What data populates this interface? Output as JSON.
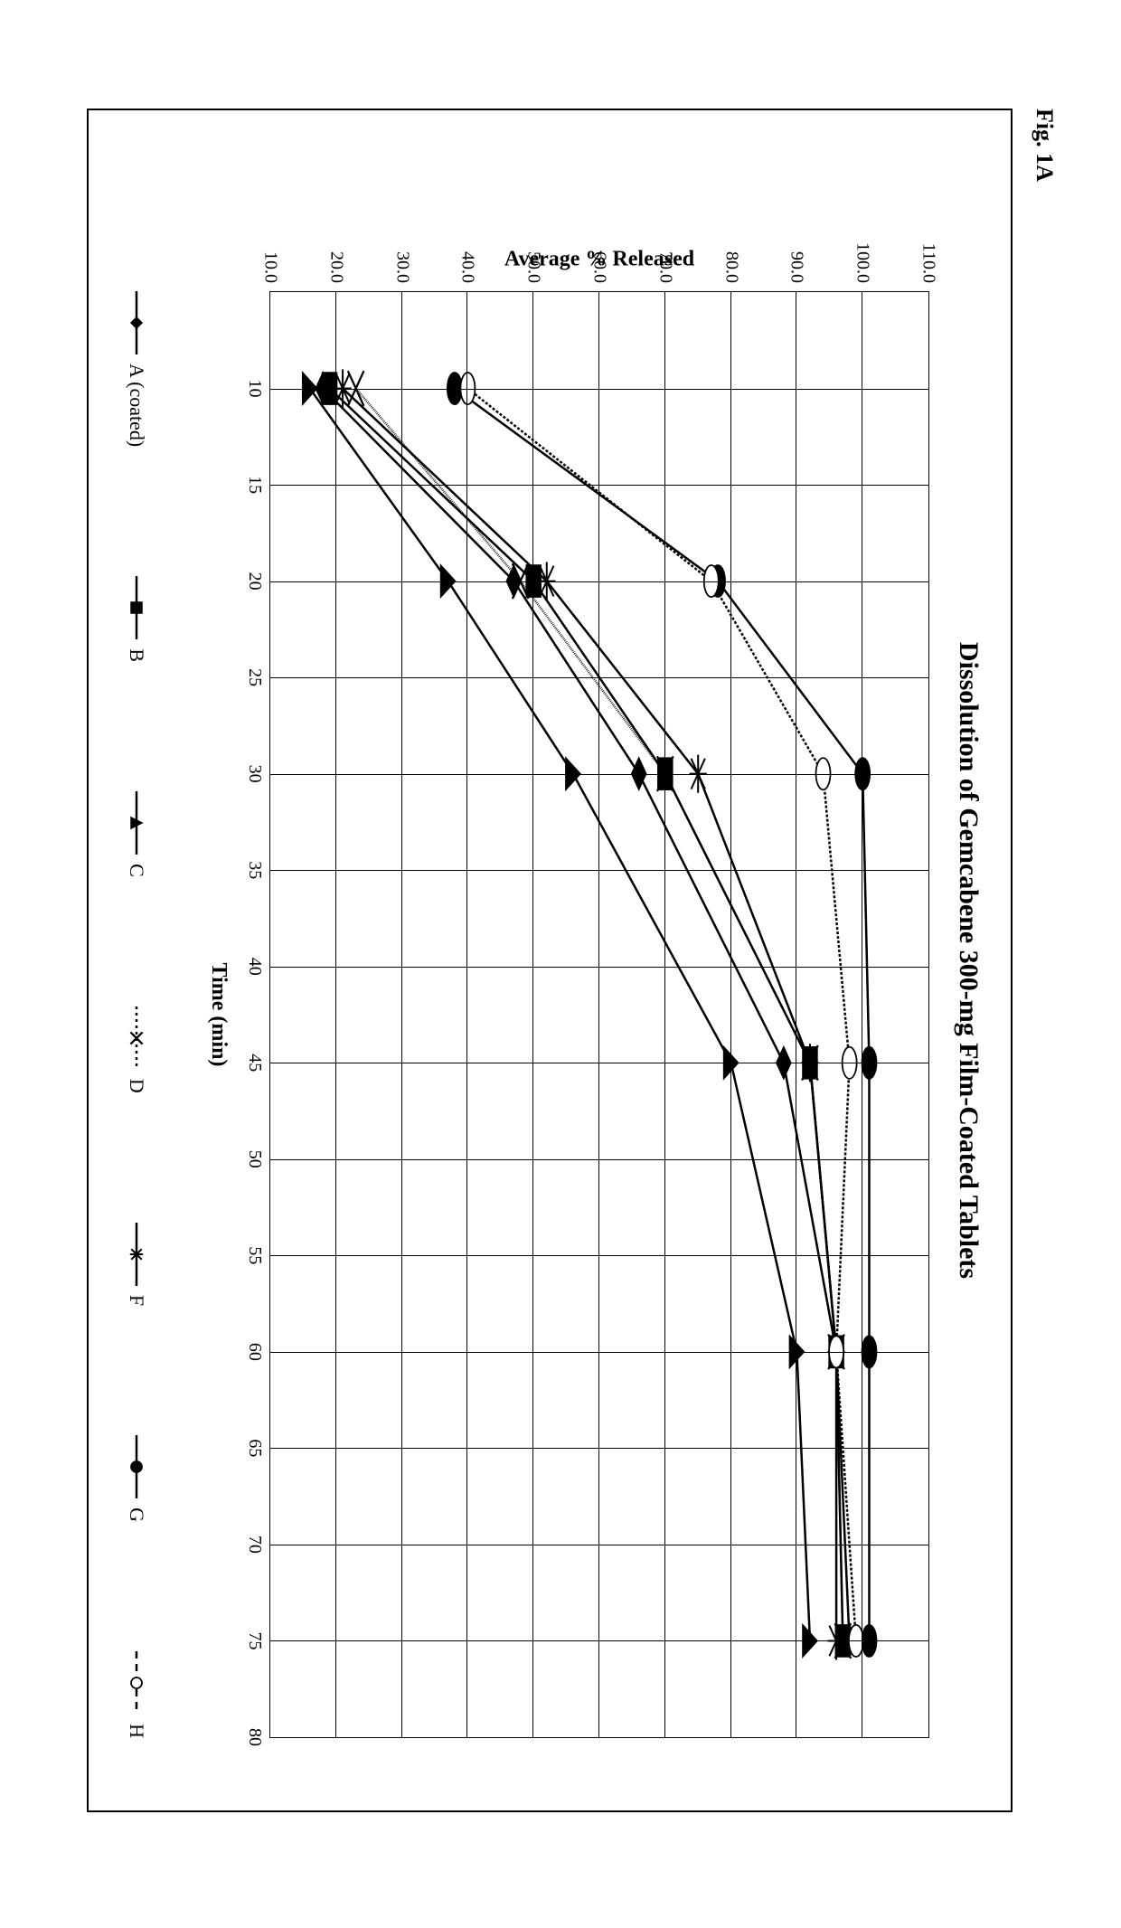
{
  "figure_label": "Fig. 1A",
  "chart": {
    "type": "line",
    "title": "Dissolution of Gemcabene 300-mg Film-Coated Tablets",
    "title_fontsize": 30,
    "xlabel": "Time (min)",
    "ylabel": "Average % Released",
    "label_fontsize": 24,
    "tick_fontsize": 20,
    "xlim": [
      5,
      80
    ],
    "ylim": [
      10,
      110
    ],
    "xtick_start": 10,
    "xtick_step": 5,
    "ytick_step": 10,
    "y_decimals": 1,
    "x_values": [
      10,
      20,
      30,
      45,
      60,
      75
    ],
    "background_color": "#ffffff",
    "grid_color": "#000000",
    "line_color": "#000000",
    "line_width": 2.5,
    "marker_size": 7,
    "series": [
      {
        "name": "A (coated)",
        "marker": "diamond",
        "fill": "solid",
        "dash": "solid",
        "y": [
          18,
          47,
          66,
          88,
          96,
          98
        ]
      },
      {
        "name": "B",
        "marker": "square",
        "fill": "solid",
        "dash": "solid",
        "y": [
          19,
          50,
          70,
          92,
          96,
          97
        ]
      },
      {
        "name": "C",
        "marker": "triangle",
        "fill": "solid",
        "dash": "solid",
        "y": [
          16,
          37,
          56,
          80,
          90,
          92
        ]
      },
      {
        "name": "D",
        "marker": "x",
        "fill": "none",
        "dash": "dotted",
        "y": [
          23,
          48,
          70,
          92,
          96,
          97
        ]
      },
      {
        "name": "F",
        "marker": "asterisk",
        "fill": "none",
        "dash": "solid",
        "y": [
          21,
          52,
          75,
          92,
          96,
          96
        ]
      },
      {
        "name": "G",
        "marker": "circle",
        "fill": "solid",
        "dash": "solid",
        "y": [
          38,
          78,
          100,
          101,
          101,
          101
        ]
      },
      {
        "name": "H",
        "marker": "circle",
        "fill": "open",
        "dash": "dashed",
        "y": [
          40,
          77,
          94,
          98,
          96,
          99
        ]
      }
    ],
    "legend_fontsize": 22
  }
}
